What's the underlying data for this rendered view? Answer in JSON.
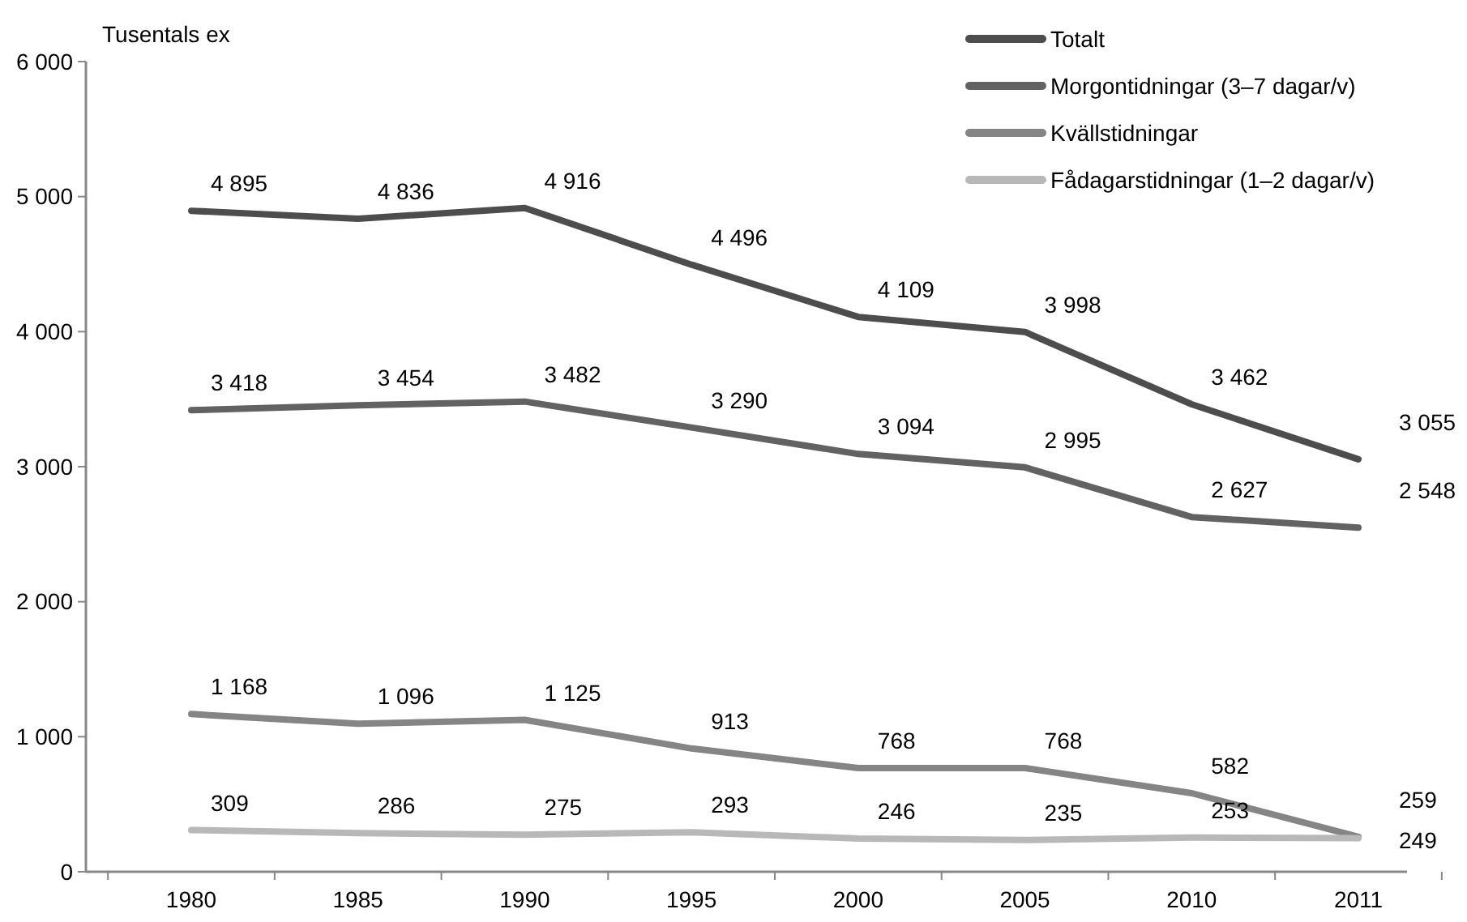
{
  "chart_data": {
    "type": "line",
    "ylabel": "Tusentals ex",
    "categories": [
      "1980",
      "1985",
      "1990",
      "1995",
      "2000",
      "2005",
      "2010",
      "2011"
    ],
    "ylim": [
      0,
      6000
    ],
    "yticks": [
      0,
      {
        "value": 1000,
        "label": "1 000"
      },
      {
        "value": 2000,
        "label": "2 000"
      },
      {
        "value": 3000,
        "label": "3 000"
      },
      {
        "value": 4000,
        "label": "4 000"
      },
      {
        "value": 5000,
        "label": "5 000"
      },
      {
        "value": 6000,
        "label": "6 000"
      }
    ],
    "legend": "top right",
    "marker": "none",
    "line_style": "solid",
    "grid": false,
    "series": [
      {
        "name": "Totalt",
        "color": "#4d4d4d",
        "values": [
          4895,
          4836,
          4916,
          4496,
          4109,
          3998,
          3462,
          3055
        ],
        "value_labels": [
          "4 895",
          "4 836",
          "4 916",
          "4 496",
          "4 109",
          "3 998",
          "3 462",
          "3 055"
        ]
      },
      {
        "name": "Morgontidningar (3–7 dagar/v)",
        "color": "#626262",
        "values": [
          3418,
          3454,
          3482,
          3290,
          3094,
          2995,
          2627,
          2548
        ],
        "value_labels": [
          "3 418",
          "3 454",
          "3 482",
          "3 290",
          "3 094",
          "2 995",
          "2 627",
          "2 548"
        ]
      },
      {
        "name": "Kvällstidningar",
        "color": "#858585",
        "values": [
          1168,
          1096,
          1125,
          913,
          768,
          768,
          582,
          259
        ],
        "value_labels": [
          "1 168",
          "1 096",
          "1 125",
          "913",
          "768",
          "768",
          "582",
          "259"
        ]
      },
      {
        "name": "Fådagarstidningar (1–2 dagar/v)",
        "color": "#b8b8b8",
        "values": [
          309,
          286,
          275,
          293,
          246,
          235,
          253,
          249
        ],
        "value_labels": [
          "309",
          "286",
          "275",
          "293",
          "246",
          "235",
          "253",
          "249"
        ]
      }
    ]
  }
}
